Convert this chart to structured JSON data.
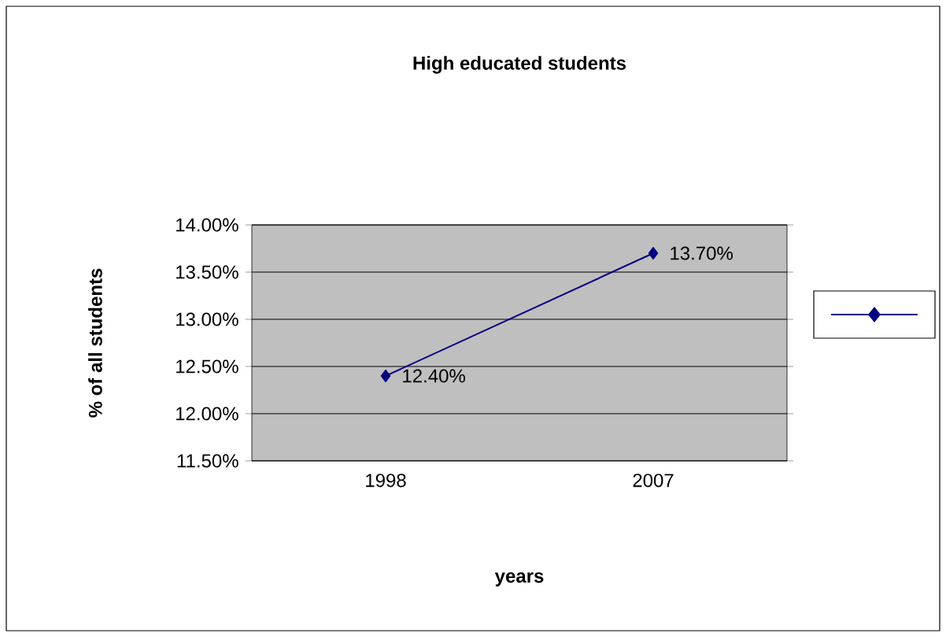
{
  "chart_data": {
    "type": "line",
    "title": "High educated students",
    "xlabel": "years",
    "ylabel": "% of all students",
    "categories": [
      "1998",
      "2007"
    ],
    "series": [
      {
        "color": "#000080",
        "values": [
          12.4,
          13.7
        ],
        "value_labels": [
          "12.40%",
          "13.70%"
        ]
      }
    ],
    "ylim": [
      11.5,
      14
    ],
    "yticks": [
      {
        "value": 11.5,
        "label": "11.50%"
      },
      {
        "value": 12,
        "label": "12.00%"
      },
      {
        "value": 12.5,
        "label": "12.50%"
      },
      {
        "value": 13,
        "label": "13.00%"
      },
      {
        "value": 13.5,
        "label": "13.50%"
      },
      {
        "value": 14,
        "label": "14.00%"
      }
    ],
    "grid": "y",
    "marker": "diamond",
    "line_style": "solid"
  }
}
